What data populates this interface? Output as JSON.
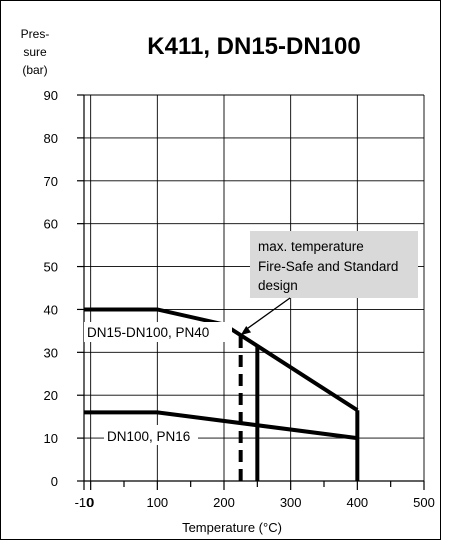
{
  "chart_data": {
    "type": "line",
    "title": "K411, DN15-DN100",
    "ylabel": [
      "Pres-",
      "sure",
      "(bar)"
    ],
    "xlabel": "Temperature (°C)",
    "xlim": [
      -10,
      500
    ],
    "ylim": [
      0,
      90
    ],
    "x_ticks": [
      -10,
      0,
      100,
      200,
      300,
      400,
      500
    ],
    "y_ticks": [
      0,
      10,
      20,
      30,
      40,
      50,
      60,
      70,
      80,
      90
    ],
    "grid": true,
    "series": [
      {
        "name": "DN15-DN100, PN40",
        "points": [
          [
            -10,
            40
          ],
          [
            100,
            40
          ],
          [
            200,
            36.5
          ],
          [
            400,
            16.5
          ]
        ]
      },
      {
        "name": "DN100, PN16",
        "points": [
          [
            -10,
            16
          ],
          [
            100,
            16
          ],
          [
            400,
            10
          ]
        ]
      }
    ],
    "vertical_lines": [
      {
        "x": 250,
        "y_from": 0,
        "y_to": 31.5,
        "style": "solid"
      },
      {
        "x": 400,
        "y_from": 0,
        "y_to": 16.5,
        "style": "solid"
      },
      {
        "x": 225,
        "y_from": 0,
        "y_to": 34,
        "style": "dashed"
      }
    ],
    "annotation": {
      "lines": [
        "max. temperature",
        "Fire-Safe and Standard",
        "design"
      ],
      "arrow_to": [
        225,
        34
      ]
    }
  }
}
